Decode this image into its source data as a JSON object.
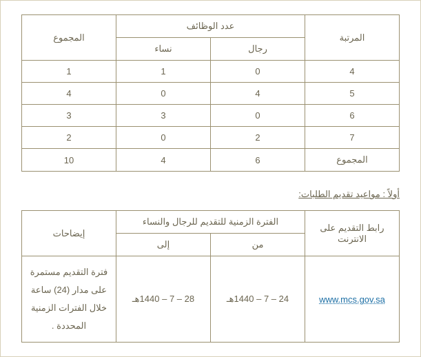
{
  "table1": {
    "headers": {
      "rank": "المرتبة",
      "jobs_count": "عدد الوظائف",
      "men": "رجال",
      "women": "نساء",
      "total": "المجموع"
    },
    "rows": [
      {
        "rank": "4",
        "men": "0",
        "women": "1",
        "total": "1"
      },
      {
        "rank": "5",
        "men": "4",
        "women": "0",
        "total": "4"
      },
      {
        "rank": "6",
        "men": "0",
        "women": "3",
        "total": "3"
      },
      {
        "rank": "7",
        "men": "2",
        "women": "0",
        "total": "2"
      },
      {
        "rank": "المجموع",
        "men": "6",
        "women": "4",
        "total": "10"
      }
    ]
  },
  "section_title": "أولاً : مواعيد تقديم الطلبات:",
  "table2": {
    "headers": {
      "link": "رابط التقديم على الانترنت",
      "period": "الفترة الزمنية للتقديم للرجال والنساء",
      "from": "من",
      "to": "إلى",
      "notes": "إيضاحات"
    },
    "row": {
      "link_text": "www.mcs.gov.sa",
      "from": "24 – 7 – 1440هـ",
      "to": "28 – 7 – 1440هـ",
      "notes": "فترة التقديم مستمرة على مدار (24) ساعة خلال الفترات الزمنية المحددة ."
    }
  },
  "colors": {
    "border": "#9a9070",
    "text": "#6b6550",
    "link": "#1d6fa5",
    "container_border": "#d8d0b8"
  }
}
